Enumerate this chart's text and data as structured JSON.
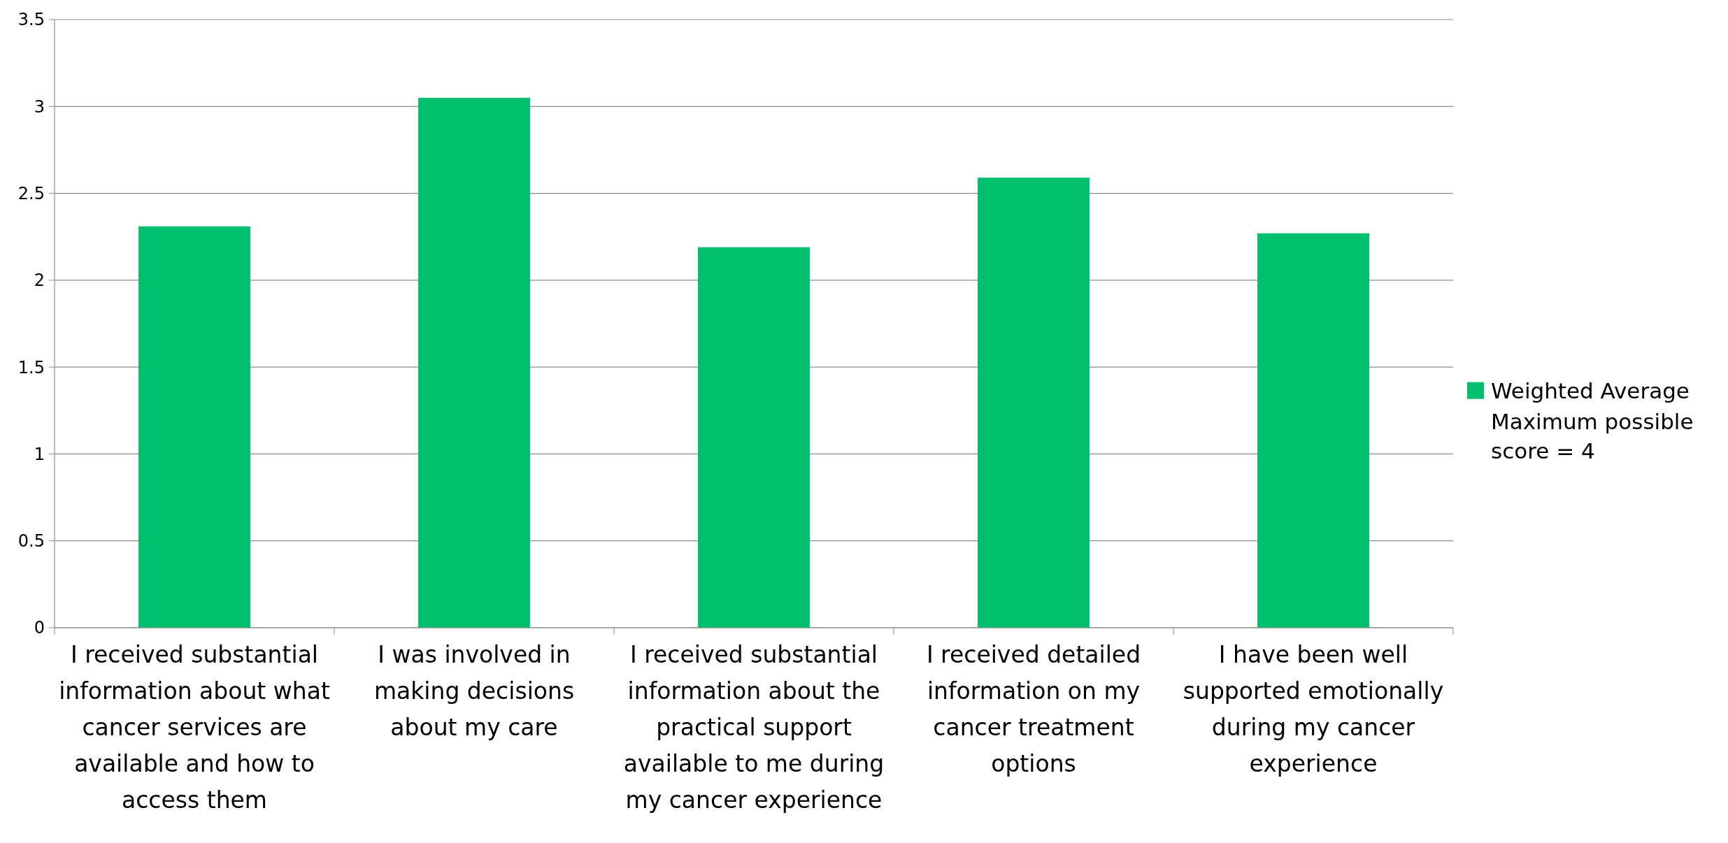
{
  "chart_data": {
    "type": "bar",
    "categories": [
      "I received substantial information about what cancer services are available and how to access them",
      "I was involved in making decisions about my care",
      "I received substantial information about the practical support available to me during my cancer experience",
      "I received detailed information on my cancer treatment options",
      "I have been well supported emotionally during my cancer experience"
    ],
    "series": [
      {
        "name": "Weighted Average",
        "color": "#00bf6f",
        "values": [
          2.31,
          3.05,
          2.19,
          2.59,
          2.27
        ]
      }
    ],
    "ylim": [
      0,
      3.5
    ],
    "yticks": [
      0,
      0.5,
      1,
      1.5,
      2,
      2.5,
      3,
      3.5
    ],
    "grid": "y",
    "legend": "right",
    "annotations": [
      "Maximum possible score = 4"
    ]
  }
}
